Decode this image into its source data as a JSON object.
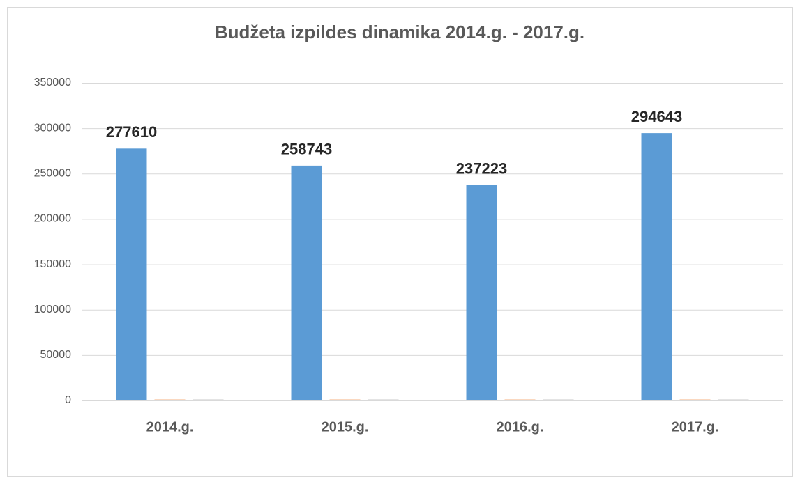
{
  "chart_data": {
    "type": "bar",
    "title": "Budžeta izpildes dinamika 2014.g. - 2017.g.",
    "categories": [
      "2014.g.",
      "2015.g.",
      "2016.g.",
      "2017.g."
    ],
    "series": [
      {
        "color": "#5b9bd5",
        "values": [
          277610,
          258743,
          237223,
          294643
        ],
        "show_labels": true
      },
      {
        "color": "#ed7d31",
        "values": [
          1000,
          1000,
          1000,
          1000
        ]
      },
      {
        "color": "#a5a5a5",
        "values": [
          1000,
          1000,
          1000,
          1000
        ]
      }
    ],
    "ylim": [
      0,
      350000
    ],
    "yticks": [
      0,
      50000,
      100000,
      150000,
      200000,
      250000,
      300000,
      350000
    ],
    "grid": true
  }
}
